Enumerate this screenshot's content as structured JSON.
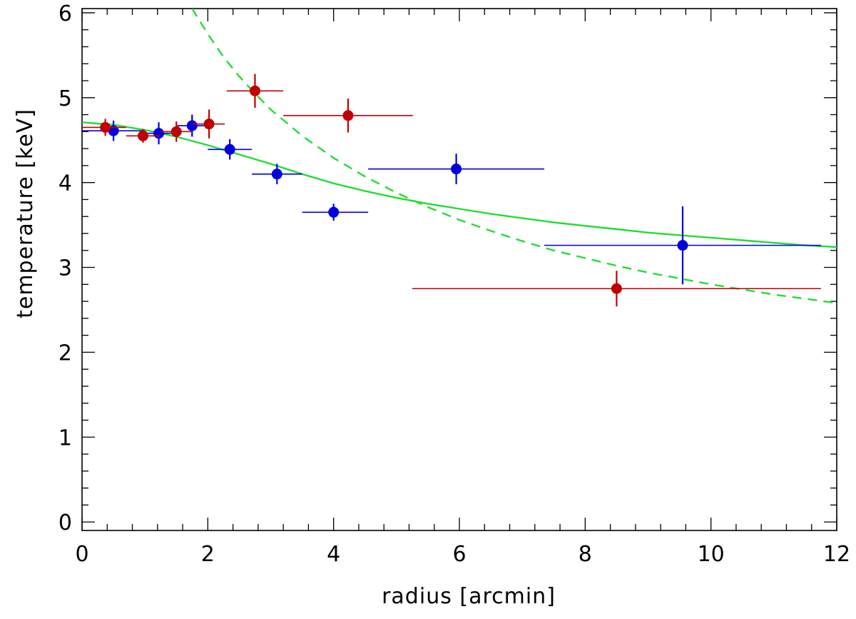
{
  "chart_data": {
    "type": "scatter",
    "title": "",
    "xlabel": "radius  [arcmin]",
    "ylabel": "temperature  [keV]",
    "xlim": [
      0,
      12
    ],
    "ylim": [
      -0.1,
      6.05
    ],
    "x_ticks": [
      "0",
      "2",
      "4",
      "6",
      "8",
      "10",
      "12"
    ],
    "y_ticks": [
      "0",
      "1",
      "2",
      "3",
      "4",
      "5",
      "6"
    ],
    "grid": false,
    "series": [
      {
        "color": "#0000dd",
        "points": [
          {
            "x": 0.5,
            "y": 4.61,
            "xerr": [
              0.5,
              0.5
            ],
            "yerr": 0.12
          },
          {
            "x": 1.22,
            "y": 4.58,
            "xerr": [
              0.22,
              0.28
            ],
            "yerr": 0.13
          },
          {
            "x": 1.75,
            "y": 4.67,
            "xerr": [
              0.25,
              0.25
            ],
            "yerr": 0.13
          },
          {
            "x": 2.35,
            "y": 4.39,
            "xerr": [
              0.35,
              0.35
            ],
            "yerr": 0.12
          },
          {
            "x": 3.1,
            "y": 4.1,
            "xerr": [
              0.4,
              0.4
            ],
            "yerr": 0.12
          },
          {
            "x": 4.0,
            "y": 3.65,
            "xerr": [
              0.5,
              0.55
            ],
            "yerr": 0.1
          },
          {
            "x": 5.95,
            "y": 4.16,
            "xerr": [
              1.4,
              1.4
            ],
            "yerr": 0.18
          },
          {
            "x": 9.55,
            "y": 3.26,
            "xerr": [
              2.2,
              2.2
            ],
            "yerr": 0.46
          }
        ]
      },
      {
        "color": "#c00000",
        "points": [
          {
            "x": 0.37,
            "y": 4.65,
            "xerr": [
              0.37,
              0.33
            ],
            "yerr": 0.1
          },
          {
            "x": 0.97,
            "y": 4.55,
            "xerr": [
              0.27,
              0.27
            ],
            "yerr": 0.08
          },
          {
            "x": 1.5,
            "y": 4.6,
            "xerr": [
              0.25,
              0.25
            ],
            "yerr": 0.12
          },
          {
            "x": 2.02,
            "y": 4.69,
            "xerr": [
              0.28,
              0.25
            ],
            "yerr": 0.17
          },
          {
            "x": 2.75,
            "y": 5.08,
            "xerr": [
              0.45,
              0.45
            ],
            "yerr": 0.2
          },
          {
            "x": 4.23,
            "y": 4.79,
            "xerr": [
              1.03,
              1.03
            ],
            "yerr": 0.2
          },
          {
            "x": 8.5,
            "y": 2.75,
            "xerr": [
              3.25,
              3.25
            ],
            "yerr": 0.21
          }
        ]
      }
    ],
    "curves": [
      {
        "color": "#22dd33",
        "style": "solid",
        "x": [
          0,
          0.5,
          1,
          1.5,
          2,
          2.5,
          3,
          3.5,
          4,
          4.5,
          5,
          5.5,
          6,
          6.5,
          7,
          7.5,
          8,
          8.5,
          9,
          9.5,
          10,
          10.5,
          11,
          11.5,
          12
        ],
        "y": [
          4.71,
          4.68,
          4.62,
          4.54,
          4.44,
          4.33,
          4.22,
          4.1,
          3.99,
          3.9,
          3.82,
          3.75,
          3.69,
          3.63,
          3.58,
          3.53,
          3.49,
          3.45,
          3.41,
          3.38,
          3.35,
          3.32,
          3.29,
          3.26,
          3.24
        ]
      },
      {
        "color": "#22dd33",
        "style": "dashed",
        "x": [
          1.75,
          2.0,
          2.25,
          2.5,
          2.75,
          3.0,
          3.5,
          4.0,
          4.5,
          5.0,
          5.5,
          6.0,
          6.5,
          7.0,
          7.5,
          8.0,
          8.5,
          9.0,
          9.5,
          10.0,
          10.5,
          11.0,
          11.5,
          12.0
        ],
        "y": [
          6.05,
          5.75,
          5.48,
          5.25,
          5.05,
          4.86,
          4.55,
          4.29,
          4.07,
          3.88,
          3.71,
          3.56,
          3.43,
          3.31,
          3.2,
          3.11,
          3.02,
          2.94,
          2.87,
          2.8,
          2.74,
          2.68,
          2.63,
          2.58
        ]
      }
    ]
  }
}
